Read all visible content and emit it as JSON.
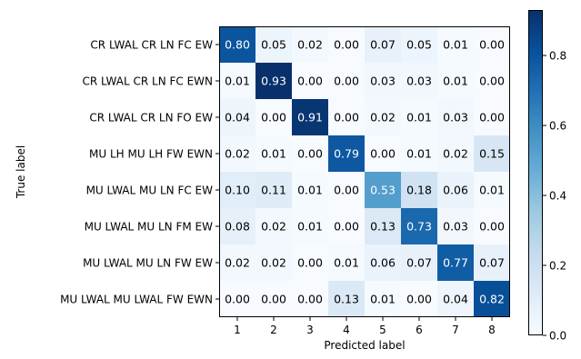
{
  "chart_data": {
    "type": "heatmap",
    "title": "",
    "xlabel": "Predicted label",
    "ylabel": "True label",
    "x_categories": [
      "1",
      "2",
      "3",
      "4",
      "5",
      "6",
      "7",
      "8"
    ],
    "y_categories": [
      "CR LWAL CR LN FC EW",
      "CR LWAL CR LN FC EWN",
      "CR LWAL CR LN FO EW",
      "MU LH MU LH FW EWN",
      "MU LWAL MU LN FC EW",
      "MU LWAL MU LN FM EW",
      "MU LWAL MU LN FW EW",
      "MU LWAL MU LWAL FW EWN"
    ],
    "values": [
      [
        0.8,
        0.05,
        0.02,
        0.0,
        0.07,
        0.05,
        0.01,
        0.0
      ],
      [
        0.01,
        0.93,
        0.0,
        0.0,
        0.03,
        0.03,
        0.01,
        0.0
      ],
      [
        0.04,
        0.0,
        0.91,
        0.0,
        0.02,
        0.01,
        0.03,
        0.0
      ],
      [
        0.02,
        0.01,
        0.0,
        0.79,
        0.0,
        0.01,
        0.02,
        0.15
      ],
      [
        0.1,
        0.11,
        0.01,
        0.0,
        0.53,
        0.18,
        0.06,
        0.01
      ],
      [
        0.08,
        0.02,
        0.01,
        0.0,
        0.13,
        0.73,
        0.03,
        0.0
      ],
      [
        0.02,
        0.02,
        0.0,
        0.01,
        0.06,
        0.07,
        0.77,
        0.07
      ],
      [
        0.0,
        0.0,
        0.0,
        0.13,
        0.01,
        0.0,
        0.04,
        0.82
      ]
    ],
    "colormap": "Blues",
    "colorbar": {
      "range": [
        0.0,
        0.93
      ],
      "ticks": [
        0.0,
        0.2,
        0.4,
        0.6,
        0.8
      ],
      "tick_labels": [
        "0.0",
        "0.2",
        "0.4",
        "0.6",
        "0.8"
      ]
    },
    "grid": false,
    "legend": "colorbar-right"
  }
}
